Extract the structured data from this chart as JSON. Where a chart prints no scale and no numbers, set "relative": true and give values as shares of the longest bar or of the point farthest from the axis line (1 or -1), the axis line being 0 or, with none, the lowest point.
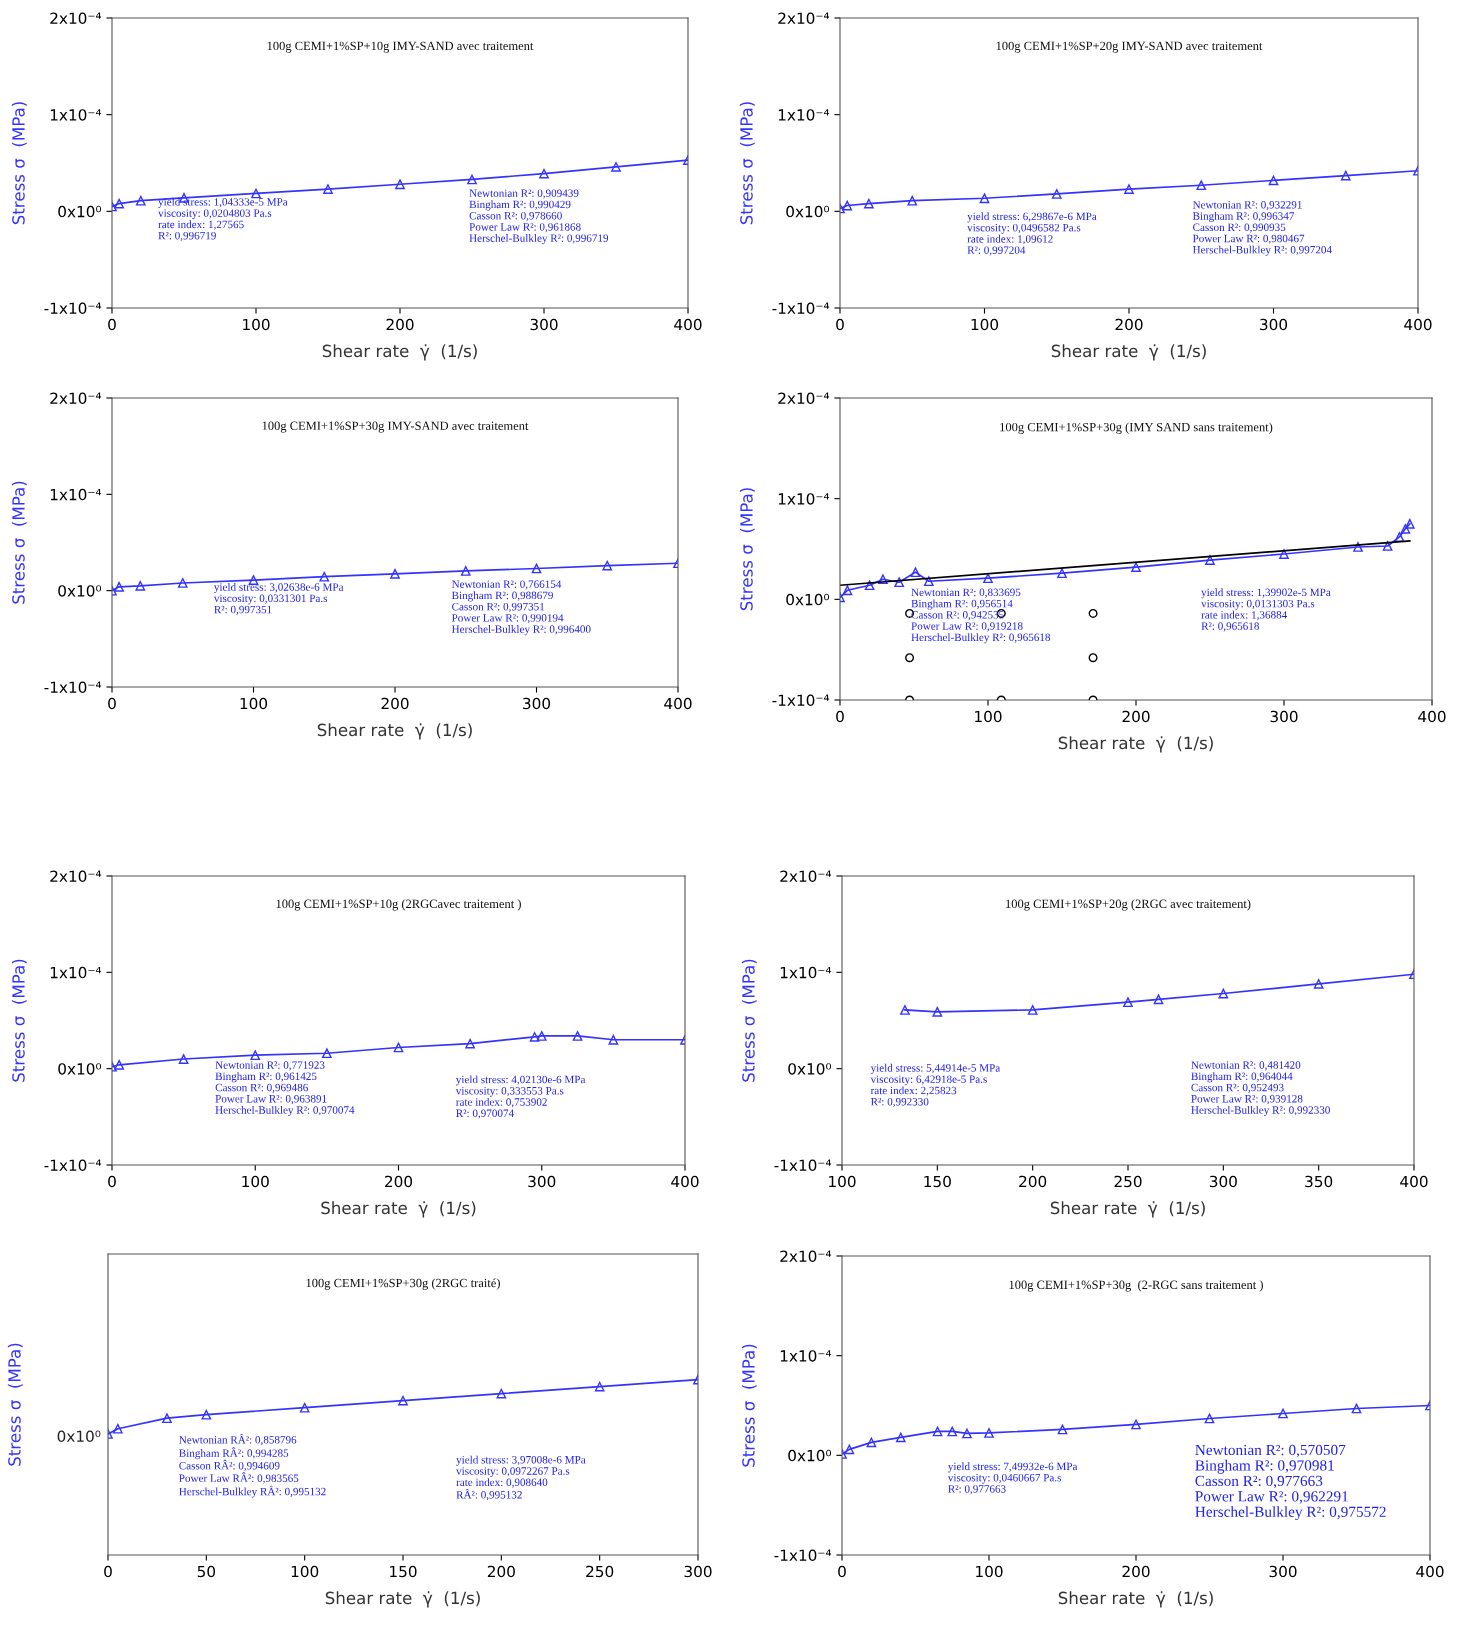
{
  "chart_data": [
    {
      "type": "line",
      "title": "100g CEMI+1%SP+10g IMY-SAND avec traitement",
      "xlabel": "Shear rate  γ̇  (1/s)",
      "ylabel": "Stress σ  (MPa)",
      "marker": "triangle",
      "grid": false,
      "legend": false,
      "xlim": [
        0,
        400
      ],
      "xticks": [
        0,
        100,
        200,
        300,
        400
      ],
      "ylim": [
        -0.0001,
        0.0002
      ],
      "yticks": [
        {
          "value": -0.0001,
          "label": "-1x10⁻⁴"
        },
        {
          "value": 0,
          "label": "0x10⁰"
        },
        {
          "value": 0.0001,
          "label": "1x10⁻⁴"
        },
        {
          "value": 0.0002,
          "label": "2x10⁻⁴"
        }
      ],
      "series": [
        {
          "color": "#3333ff",
          "x": [
            0,
            5,
            20,
            50,
            100,
            150,
            200,
            250,
            300,
            350,
            400
          ],
          "values": [
            5e-06,
            8e-06,
            1.1e-05,
            1.4e-05,
            1.85e-05,
            2.3e-05,
            2.8e-05,
            3.3e-05,
            3.9e-05,
            4.6e-05,
            5.3e-05
          ]
        }
      ],
      "annotations": [
        "yield stress: 1,04333e-5 MPa\nviscosity: 0,0204803 Pa.s\nrate index: 1,27565\nR²: 0,996719",
        "Newtonian R²: 0,909439\nBingham R²: 0,990429\nCasson R²: 0,978660\nPower Law R²: 0,961868\nHerschel-Bulkley R²: 0,996719"
      ]
    },
    {
      "type": "line",
      "title": "100g CEMI+1%SP+20g IMY-SAND avec traitement",
      "xlabel": "Shear rate  γ̇  (1/s)",
      "ylabel": "Stress σ  (MPa)",
      "marker": "triangle",
      "grid": false,
      "legend": false,
      "xlim": [
        0,
        400
      ],
      "xticks": [
        0,
        100,
        200,
        300,
        400
      ],
      "ylim": [
        -0.0001,
        0.0002
      ],
      "yticks": [
        {
          "value": -0.0001,
          "label": "-1x10⁻⁴"
        },
        {
          "value": 0,
          "label": "0x10⁰"
        },
        {
          "value": 0.0001,
          "label": "1x10⁻⁴"
        },
        {
          "value": 0.0002,
          "label": "2x10⁻⁴"
        }
      ],
      "series": [
        {
          "color": "#3333ff",
          "x": [
            0,
            5,
            20,
            50,
            100,
            150,
            200,
            250,
            300,
            350,
            400
          ],
          "values": [
            3e-06,
            6e-06,
            8e-06,
            1.1e-05,
            1.35e-05,
            1.8e-05,
            2.3e-05,
            2.7e-05,
            3.2e-05,
            3.7e-05,
            4.2e-05
          ]
        }
      ],
      "annotations": [
        "yield stress: 6,29867e-6 MPa\nviscosity: 0,0496582 Pa.s\nrate index: 1,09612\nR²: 0,997204",
        "Newtonian R²: 0,932291\nBingham R²: 0,996347\nCasson R²: 0,990935\nPower Law R²: 0,980467\nHerschel-Bulkley R²: 0,997204"
      ]
    },
    {
      "type": "line",
      "title": "100g CEMI+1%SP+30g IMY-SAND avec traitement",
      "xlabel": "Shear rate  γ̇  (1/s)",
      "ylabel": "Stress σ  (MPa)",
      "marker": "triangle",
      "grid": false,
      "legend": false,
      "xlim": [
        0,
        400
      ],
      "xticks": [
        0,
        100,
        200,
        300,
        400
      ],
      "ylim": [
        -0.0001,
        0.0002
      ],
      "yticks": [
        {
          "value": -0.0001,
          "label": "-1x10⁻⁴"
        },
        {
          "value": 0,
          "label": "0x10⁰"
        },
        {
          "value": 0.0001,
          "label": "1x10⁻⁴"
        },
        {
          "value": 0.0002,
          "label": "2x10⁻⁴"
        }
      ],
      "series": [
        {
          "color": "#3333ff",
          "x": [
            0,
            5,
            20,
            50,
            100,
            150,
            200,
            250,
            300,
            350,
            400
          ],
          "values": [
            0,
            4e-06,
            5e-06,
            8e-06,
            1.1e-05,
            1.45e-05,
            1.75e-05,
            2.05e-05,
            2.3e-05,
            2.6e-05,
            2.85e-05
          ]
        }
      ],
      "annotations": [
        "yield stress: 3,02638e-6 MPa\nviscosity: 0,0331301 Pa.s\nR²: 0,997351",
        "Newtonian R²: 0,766154\nBingham R²: 0,988679\nCasson R²: 0,997351\nPower Law R²: 0,990194\nHerschel-Bulkley R²: 0,996400"
      ]
    },
    {
      "type": "line",
      "title": "100g CEMI+1%SP+30g (IMY SAND sans traitement)",
      "xlabel": "Shear rate  γ̇  (1/s)",
      "ylabel": "Stress σ  (MPa)",
      "marker": "triangle",
      "grid": false,
      "legend": false,
      "xlim": [
        0,
        400
      ],
      "xticks": [
        0,
        100,
        200,
        300,
        400
      ],
      "ylim": [
        -0.0001,
        0.0002
      ],
      "yticks": [
        {
          "value": -0.0001,
          "label": "-1x10⁻⁴"
        },
        {
          "value": 0,
          "label": "0x10⁰"
        },
        {
          "value": 0.0001,
          "label": "1x10⁻⁴"
        },
        {
          "value": 0.0002,
          "label": "2x10⁻⁴"
        }
      ],
      "series": [
        {
          "color": "#3333ff",
          "x": [
            0,
            5,
            20,
            29,
            40,
            51,
            60,
            100,
            150,
            200,
            250,
            300,
            350,
            370,
            378,
            382,
            385
          ],
          "values": [
            2e-06,
            9e-06,
            1.4e-05,
            2e-05,
            1.7e-05,
            2.7e-05,
            1.8e-05,
            2.1e-05,
            2.6e-05,
            3.2e-05,
            3.9e-05,
            4.5e-05,
            5.2e-05,
            5.3e-05,
            6.2e-05,
            7e-05,
            7.5e-05
          ]
        },
        {
          "color": "#000000",
          "marker": "none",
          "x": [
            0,
            385
          ],
          "values": [
            1.4e-05,
            5.8e-05
          ]
        },
        {
          "type": "scatter",
          "color": "#000000",
          "marker": "circle",
          "x": [
            47,
            109,
            171,
            47,
            171,
            47,
            109,
            171
          ],
          "values": [
            -1.4e-05,
            -1.4e-05,
            -1.4e-05,
            -5.8e-05,
            -5.8e-05,
            -0.0001,
            -0.0001,
            -0.0001
          ]
        }
      ],
      "annotations": [
        "Newtonian R²: 0,833695\nBingham R²: 0,956514\nCasson R²: 0,942535\nPower Law R²: 0,919218\nHerschel-Bulkley R²: 0,965618",
        "yield stress: 1,39902e-5 MPa\nviscosity: 0,0131303 Pa.s\nrate index: 1,36884\nR²: 0,965618"
      ]
    },
    {
      "type": "line",
      "title": "100g CEMI+1%SP+10g (2RGCavec traitement )",
      "xlabel": "Shear rate  γ̇  (1/s)",
      "ylabel": "Stress σ  (MPa)",
      "marker": "triangle",
      "grid": false,
      "legend": false,
      "xlim": [
        0,
        400
      ],
      "xticks": [
        0,
        100,
        200,
        300,
        400
      ],
      "ylim": [
        -0.0001,
        0.0002
      ],
      "yticks": [
        {
          "value": -0.0001,
          "label": "-1x10⁻⁴"
        },
        {
          "value": 0,
          "label": "0x10⁰"
        },
        {
          "value": 0.0001,
          "label": "1x10⁻⁴"
        },
        {
          "value": 0.0002,
          "label": "2x10⁻⁴"
        }
      ],
      "series": [
        {
          "color": "#3333ff",
          "x": [
            0,
            5,
            50,
            100,
            150,
            200,
            250,
            295,
            300,
            325,
            350,
            400
          ],
          "values": [
            2e-06,
            4e-06,
            1e-05,
            1.4e-05,
            1.6e-05,
            2.2e-05,
            2.6e-05,
            3.3e-05,
            3.4e-05,
            3.4e-05,
            3e-05,
            3e-05
          ]
        }
      ],
      "annotations": [
        "Newtonian R²: 0,771923\nBingham R²: 0,961425\nCasson R²: 0,969486\nPower Law R²: 0,963891\nHerschel-Bulkley R²: 0,970074",
        "yield stress: 4,02130e-6 MPa\nviscosity: 0,333553 Pa.s\nrate index: 0,753902\nR²: 0,970074"
      ]
    },
    {
      "type": "line",
      "title": "100g CEMI+1%SP+20g (2RGC avec traitement)",
      "xlabel": "Shear rate  γ̇  (1/s)",
      "ylabel": "Stress σ  (MPa)",
      "marker": "triangle",
      "grid": false,
      "legend": false,
      "xlim": [
        100,
        400
      ],
      "xticks": [
        100,
        150,
        200,
        250,
        300,
        350,
        400
      ],
      "ylim": [
        -0.0001,
        0.0002
      ],
      "yticks": [
        {
          "value": -0.0001,
          "label": "-1x10⁻⁴"
        },
        {
          "value": 0,
          "label": "0x10⁰"
        },
        {
          "value": 0.0001,
          "label": "1x10⁻⁴"
        },
        {
          "value": 0.0002,
          "label": "2x10⁻⁴"
        }
      ],
      "series": [
        {
          "color": "#3333ff",
          "x": [
            133,
            150,
            200,
            250,
            266,
            300,
            350,
            400
          ],
          "values": [
            6.1e-05,
            5.9e-05,
            6.1e-05,
            6.9e-05,
            7.2e-05,
            7.8e-05,
            8.8e-05,
            9.8e-05
          ]
        }
      ],
      "annotations": [
        "yield stress: 5,44914e-5 MPa\nviscosity: 6,42918e-5 Pa.s\nrate index: 2,25823\nR²: 0,992330",
        "Newtonian R²: 0,481420\nBingham R²: 0,964044\nCasson R²: 0,952493\nPower Law R²: 0,939128\nHerschel-Bulkley R²: 0,992330"
      ]
    },
    {
      "type": "line",
      "title": "100g CEMI+1%SP+30g (2RGC traité)",
      "xlabel": "Shear rate  γ̇  (1/s)",
      "ylabel": "Stress σ  (MPa)",
      "marker": "triangle",
      "grid": false,
      "legend": false,
      "relative": true,
      "xlim": [
        0,
        300
      ],
      "xticks": [
        0,
        50,
        100,
        150,
        200,
        250,
        300
      ],
      "series": [
        {
          "color": "#3333ff",
          "x": [
            0,
            5,
            30,
            50,
            100,
            150,
            200,
            250,
            300
          ],
          "values": [
            0.69,
            0.72,
            0.78,
            0.8,
            0.84,
            0.88,
            0.92,
            0.96,
            1.0
          ]
        }
      ],
      "annotations": [
        "0x10⁰",
        "Newtonian RÂ²: 0,858796\nBingham RÂ²: 0,994285\nCasson RÂ²: 0,994609\nPower Law RÂ²: 0,983565\nHerschel-Bulkley RÂ²: 0,995132",
        "yield stress: 3,97008e-6 MPa\nviscosity: 0,0972267 Pa.s\nrate index: 0,908640\nRÂ²: 0,995132"
      ]
    },
    {
      "type": "line",
      "title": "100g CEMI+1%SP+30g  (2-RGC sans traitement )",
      "xlabel": "Shear rate  γ̇  (1/s)",
      "ylabel": "Stress σ  (MPa)",
      "marker": "triangle",
      "grid": false,
      "legend": false,
      "xlim": [
        0,
        400
      ],
      "xticks": [
        0,
        100,
        200,
        300,
        400
      ],
      "ylim": [
        -0.0001,
        0.0002
      ],
      "yticks": [
        {
          "value": -0.0001,
          "label": "-1x10⁻⁴"
        },
        {
          "value": 0,
          "label": "0x10⁰"
        },
        {
          "value": 0.0001,
          "label": "1x10⁻⁴"
        },
        {
          "value": 0.0002,
          "label": "2x10⁻⁴"
        }
      ],
      "series": [
        {
          "color": "#3333ff",
          "x": [
            0,
            5,
            20,
            40,
            65,
            75,
            85,
            100,
            150,
            200,
            250,
            300,
            350,
            400
          ],
          "values": [
            1.4e-06,
            6e-06,
            1.3e-05,
            1.8e-05,
            2.4e-05,
            2.4e-05,
            2.2e-05,
            2.25e-05,
            2.6e-05,
            3.1e-05,
            3.7e-05,
            4.2e-05,
            4.7e-05,
            5e-05
          ]
        }
      ],
      "annotations": [
        "yield stress: 7,49932e-6 MPa\nviscosity: 0,0460667 Pa.s\nR²: 0,977663",
        "Newtonian R²: 0,570507\nBingham R²: 0,970981\nCasson R²: 0,977663\nPower Law R²: 0,962291\nHerschel-Bulkley R²: 0,975572"
      ]
    }
  ]
}
